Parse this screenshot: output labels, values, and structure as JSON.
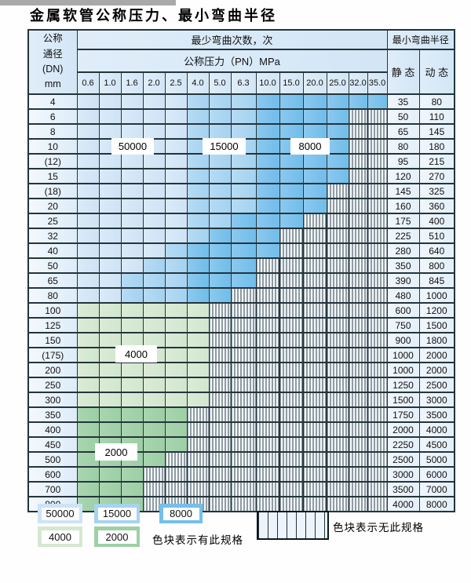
{
  "title": "金属软管公称压力、最小弯曲半径",
  "header": {
    "dn_lines": "公称\n通径\n(DN)\nmm",
    "cycles_title": "最少弯曲次数，次",
    "pressure_title": "公称压力（PN）MPa",
    "radius_title": "最小弯曲半径",
    "static_label": "静 态",
    "dynamic_label": "动 态"
  },
  "zone_labels": {
    "blue_50000": "50000",
    "blue_15000": "15000",
    "blue_8000": "8000",
    "green_4000": "4000",
    "green_2000": "2000"
  },
  "legend": {
    "has_spec_text": "色块表示有此规格",
    "no_spec_text": "色块表示无此规格"
  },
  "colors": {
    "blue_50000": "#cfe3f5",
    "blue_15000": "#a4d2f0",
    "blue_8000": "#70bdea",
    "green_4000": "#d2e6ce",
    "green_2000": "#9dcfa4",
    "grid": "#24343c",
    "header_bg": "#d8e9f7"
  },
  "chart_data": {
    "type": "heatmap",
    "title": "金属软管公称压力、最小弯曲半径",
    "x_label": "公称压力（PN）MPa",
    "x_categories": [
      "0.6",
      "1.0",
      "1.6",
      "2.0",
      "2.5",
      "4.0",
      "5.0",
      "6.3",
      "10.0",
      "15.0",
      "20.0",
      "25.0",
      "32.0",
      "35.0"
    ],
    "y_label": "公称通径(DN) mm",
    "value_meaning": "最少弯曲次数，次",
    "no_spec_meaning": "色块表示无此规格（斜线填充）",
    "radius_columns": [
      "静态",
      "动态"
    ],
    "rows": [
      {
        "dn": "4",
        "runs": [
          [
            "50000",
            5
          ],
          [
            "15000",
            3
          ],
          [
            "8000",
            6
          ]
        ],
        "static": "35",
        "dynamic": "80"
      },
      {
        "dn": "6",
        "runs": [
          [
            "50000",
            5
          ],
          [
            "15000",
            3
          ],
          [
            "8000",
            4
          ]
        ],
        "static": "50",
        "dynamic": "110"
      },
      {
        "dn": "8",
        "runs": [
          [
            "50000",
            5
          ],
          [
            "15000",
            3
          ],
          [
            "8000",
            4
          ]
        ],
        "static": "65",
        "dynamic": "145"
      },
      {
        "dn": "10",
        "runs": [
          [
            "50000",
            5
          ],
          [
            "15000",
            3
          ],
          [
            "8000",
            4
          ]
        ],
        "static": "80",
        "dynamic": "180"
      },
      {
        "dn": "(12)",
        "runs": [
          [
            "50000",
            5
          ],
          [
            "15000",
            3
          ],
          [
            "8000",
            4
          ]
        ],
        "static": "95",
        "dynamic": "215"
      },
      {
        "dn": "15",
        "runs": [
          [
            "50000",
            5
          ],
          [
            "15000",
            3
          ],
          [
            "8000",
            4
          ]
        ],
        "static": "120",
        "dynamic": "270"
      },
      {
        "dn": "(18)",
        "runs": [
          [
            "50000",
            5
          ],
          [
            "15000",
            3
          ],
          [
            "8000",
            3
          ]
        ],
        "static": "145",
        "dynamic": "325"
      },
      {
        "dn": "20",
        "runs": [
          [
            "50000",
            5
          ],
          [
            "15000",
            3
          ],
          [
            "8000",
            3
          ]
        ],
        "static": "160",
        "dynamic": "360"
      },
      {
        "dn": "25",
        "runs": [
          [
            "50000",
            5
          ],
          [
            "15000",
            2
          ],
          [
            "8000",
            3
          ]
        ],
        "static": "175",
        "dynamic": "400"
      },
      {
        "dn": "32",
        "runs": [
          [
            "50000",
            5
          ],
          [
            "15000",
            1
          ],
          [
            "8000",
            3
          ]
        ],
        "static": "225",
        "dynamic": "510"
      },
      {
        "dn": "40",
        "runs": [
          [
            "50000",
            4
          ],
          [
            "15000",
            1
          ],
          [
            "8000",
            4
          ]
        ],
        "static": "280",
        "dynamic": "640"
      },
      {
        "dn": "50",
        "runs": [
          [
            "50000",
            3
          ],
          [
            "15000",
            2
          ],
          [
            "8000",
            3
          ]
        ],
        "static": "350",
        "dynamic": "800"
      },
      {
        "dn": "65",
        "runs": [
          [
            "50000",
            2
          ],
          [
            "15000",
            3
          ],
          [
            "8000",
            3
          ]
        ],
        "static": "390",
        "dynamic": "845"
      },
      {
        "dn": "80",
        "runs": [
          [
            "50000",
            2
          ],
          [
            "15000",
            3
          ],
          [
            "8000",
            2
          ]
        ],
        "static": "480",
        "dynamic": "1000"
      },
      {
        "dn": "100",
        "runs": [
          [
            "4000",
            6
          ]
        ],
        "static": "600",
        "dynamic": "1200"
      },
      {
        "dn": "125",
        "runs": [
          [
            "4000",
            6
          ]
        ],
        "static": "750",
        "dynamic": "1500"
      },
      {
        "dn": "150",
        "runs": [
          [
            "4000",
            6
          ]
        ],
        "static": "900",
        "dynamic": "1800"
      },
      {
        "dn": "(175)",
        "runs": [
          [
            "4000",
            6
          ]
        ],
        "static": "1000",
        "dynamic": "2000"
      },
      {
        "dn": "200",
        "runs": [
          [
            "4000",
            6
          ]
        ],
        "static": "1000",
        "dynamic": "2000"
      },
      {
        "dn": "250",
        "runs": [
          [
            "4000",
            6
          ]
        ],
        "static": "1250",
        "dynamic": "2500"
      },
      {
        "dn": "300",
        "runs": [
          [
            "4000",
            6
          ]
        ],
        "static": "1500",
        "dynamic": "3000"
      },
      {
        "dn": "350",
        "runs": [
          [
            "2000",
            5
          ]
        ],
        "static": "1750",
        "dynamic": "3500"
      },
      {
        "dn": "400",
        "runs": [
          [
            "2000",
            5
          ]
        ],
        "static": "2000",
        "dynamic": "4000"
      },
      {
        "dn": "450",
        "runs": [
          [
            "2000",
            5
          ]
        ],
        "static": "2250",
        "dynamic": "4500"
      },
      {
        "dn": "500",
        "runs": [
          [
            "2000",
            4
          ]
        ],
        "static": "2500",
        "dynamic": "5000"
      },
      {
        "dn": "600",
        "runs": [
          [
            "2000",
            3
          ]
        ],
        "static": "3000",
        "dynamic": "6000"
      },
      {
        "dn": "700",
        "runs": [
          [
            "2000",
            3
          ]
        ],
        "static": "3500",
        "dynamic": "7000"
      },
      {
        "dn": "800",
        "runs": [
          [
            "2000",
            3
          ]
        ],
        "static": "4000",
        "dynamic": "8000"
      }
    ]
  }
}
